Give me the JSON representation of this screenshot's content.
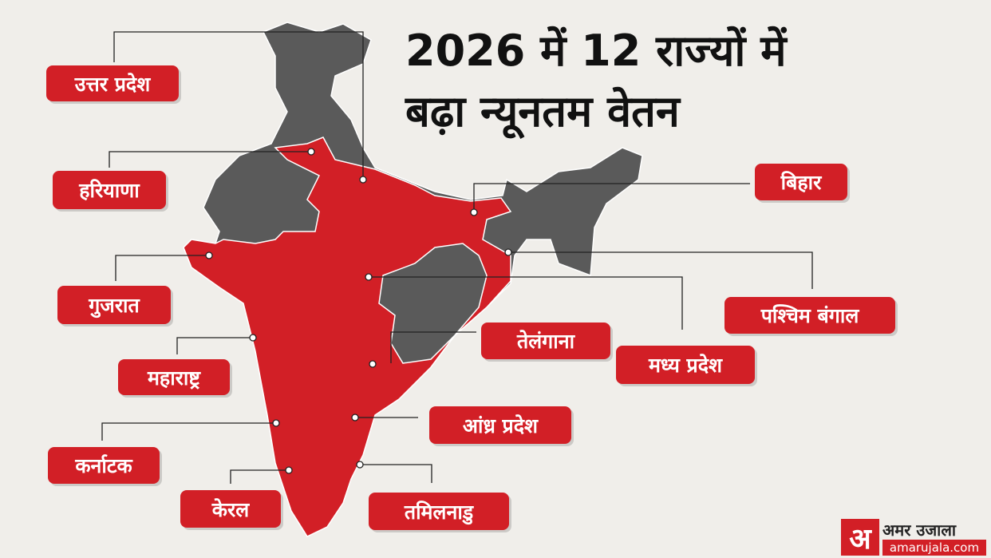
{
  "title": [
    "2026 में 12 राज्यों में",
    "बढ़ा न्यूनतम वेतन"
  ],
  "states": [
    "उत्तर प्रदेश",
    "हरियाणा",
    "बिहार",
    "गुजरात",
    "पश्चिम बंगाल",
    "तेलंगाना",
    "महाराष्ट्र",
    "मध्य प्रदेश",
    "आंध्र प्रदेश",
    "कर्नाटक",
    "केरल",
    "तमिलनाडु"
  ],
  "logo": {
    "mark": "अ",
    "brand": "अमर उजाला",
    "site": "amarujala.com"
  }
}
